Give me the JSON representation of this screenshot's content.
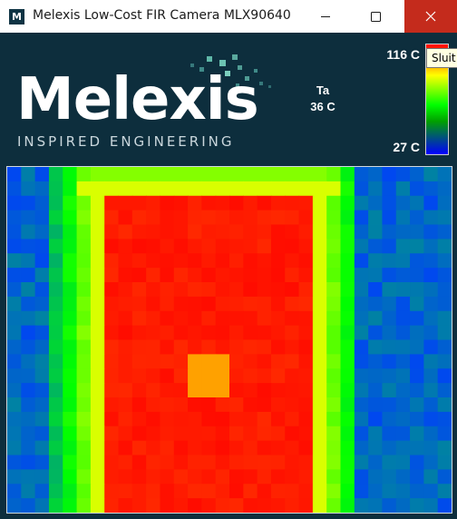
{
  "window": {
    "title": "Melexis Low-Cost FIR Camera MLX90640",
    "app_icon_letter": "M",
    "minimize_icon": "minimize-icon",
    "maximize_icon": "maximize-icon",
    "close_icon": "close-icon",
    "close_color": "#c42b1c"
  },
  "header": {
    "logo_text": "Melexis",
    "tagline": "INSPIRED ENGINEERING",
    "ta_label": "Ta",
    "ta_value": "36 C",
    "background": "#0d2e3d"
  },
  "colorbar": {
    "max_label": "116 C",
    "min_label": "27 C",
    "max_value": 116,
    "min_value": 27,
    "colors": [
      "#ff0000",
      "#ffff00",
      "#00ff00",
      "#0000ff"
    ]
  },
  "tooltip": {
    "text": "Sluit"
  },
  "thermal_image": {
    "columns": 32,
    "rows": 24,
    "palette": "blue-green-yellow-red"
  }
}
